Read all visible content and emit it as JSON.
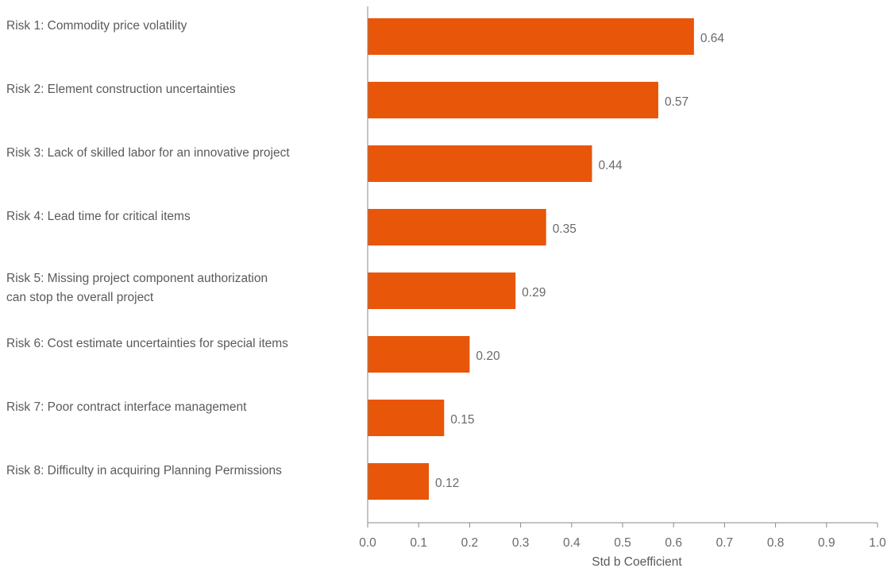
{
  "chart_data": {
    "type": "bar",
    "orientation": "horizontal",
    "categories": [
      "Risk 1: Commodity price volatility",
      "Risk 2: Element construction uncertainties",
      "Risk 3: Lack of skilled labor for an innovative project",
      "Risk 4: Lead time for critical items",
      "Risk 5: Missing project component authorization\ncan stop the overall project",
      "Risk 6: Cost estimate uncertainties for special items",
      "Risk 7: Poor contract interface management",
      "Risk 8: Difficulty in acquiring Planning Permissions"
    ],
    "values": [
      0.64,
      0.57,
      0.44,
      0.35,
      0.29,
      0.2,
      0.15,
      0.12
    ],
    "value_labels": [
      "0.64",
      "0.57",
      "0.44",
      "0.35",
      "0.29",
      "0.20",
      "0.15",
      "0.12"
    ],
    "xlabel": "Std b Coefficient",
    "xlim": [
      0.0,
      1.0
    ],
    "xticks": [
      "0.0",
      "0.1",
      "0.2",
      "0.3",
      "0.4",
      "0.5",
      "0.6",
      "0.7",
      "0.8",
      "0.9",
      "1.0"
    ],
    "grid": false,
    "legend": "none",
    "bar_color": "#E8560A",
    "axis_color": "#8a8a8a"
  }
}
